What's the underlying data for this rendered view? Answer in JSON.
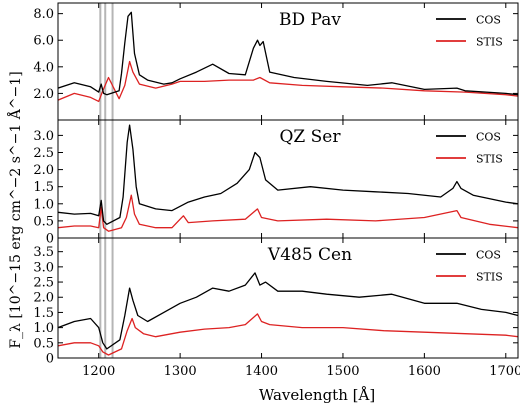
{
  "chart_data": {
    "type": "line",
    "xlabel": "Wavelength [Å]",
    "ylabel": "F_λ [10^−15 erg cm^−2 s^−1 Å^−1]",
    "xlim": [
      1150,
      1715
    ],
    "xticks": [
      1200,
      1300,
      1400,
      1500,
      1600,
      1700
    ],
    "xtick_labels": [
      "1200",
      "1300",
      "1400",
      "1500",
      "1600",
      "1700"
    ],
    "legend_placement": "top-right",
    "colors": {
      "COS": "#000000",
      "STIS": "#dd2222",
      "geocoronal": "#b5b5b5"
    },
    "panels": [
      {
        "title": "BD Pav",
        "ylim": [
          0,
          8.8
        ],
        "yticks": [
          2,
          4,
          6,
          8
        ],
        "ytick_labels": [
          "2.0",
          "4.0",
          "6.0",
          "8.0"
        ],
        "series": [
          {
            "name": "COS",
            "x": [
              1150,
              1170,
              1190,
              1200,
              1203,
              1206,
              1210,
              1225,
              1228,
              1232,
              1236,
              1240,
              1244,
              1250,
              1260,
              1280,
              1290,
              1300,
              1320,
              1340,
              1360,
              1380,
              1390,
              1395,
              1398,
              1402,
              1410,
              1440,
              1480,
              1530,
              1560,
              1600,
              1640,
              1650,
              1700,
              1715
            ],
            "y": [
              2.4,
              2.8,
              2.5,
              2.1,
              2.7,
              2.0,
              1.9,
              2.2,
              3.5,
              5.8,
              7.8,
              8.1,
              5.0,
              3.4,
              3.0,
              2.7,
              2.8,
              3.1,
              3.6,
              4.2,
              3.5,
              3.4,
              5.4,
              6.0,
              5.6,
              5.9,
              3.6,
              3.2,
              2.9,
              2.6,
              2.8,
              2.3,
              2.4,
              2.2,
              2.0,
              1.9
            ]
          },
          {
            "name": "STIS",
            "x": [
              1150,
              1170,
              1190,
              1200,
              1205,
              1212,
              1225,
              1232,
              1238,
              1242,
              1250,
              1270,
              1290,
              1300,
              1330,
              1360,
              1390,
              1398,
              1410,
              1450,
              1500,
              1550,
              1600,
              1650,
              1700,
              1715
            ],
            "y": [
              1.5,
              2.0,
              1.7,
              1.4,
              2.2,
              3.2,
              1.6,
              2.6,
              4.4,
              3.6,
              2.7,
              2.4,
              2.7,
              2.9,
              2.9,
              3.0,
              3.0,
              3.2,
              2.8,
              2.6,
              2.5,
              2.4,
              2.2,
              2.1,
              1.9,
              1.8
            ]
          }
        ]
      },
      {
        "title": "QZ Ser",
        "ylim": [
          0,
          3.45
        ],
        "yticks": [
          0,
          0.5,
          1,
          1.5,
          2,
          2.5,
          3
        ],
        "ytick_labels": [
          "0",
          "0.5",
          "1.0",
          "1.5",
          "2.0",
          "2.5",
          "3.0"
        ],
        "series": [
          {
            "name": "COS",
            "x": [
              1150,
              1170,
              1190,
              1200,
              1203,
              1206,
              1210,
              1226,
              1230,
              1235,
              1238,
              1242,
              1246,
              1250,
              1270,
              1290,
              1310,
              1330,
              1350,
              1370,
              1385,
              1392,
              1398,
              1405,
              1420,
              1460,
              1500,
              1540,
              1580,
              1620,
              1635,
              1640,
              1645,
              1660,
              1700,
              1715
            ],
            "y": [
              0.75,
              0.7,
              0.72,
              0.65,
              1.1,
              0.5,
              0.4,
              0.6,
              1.2,
              2.8,
              3.3,
              2.6,
              1.5,
              1.0,
              0.85,
              0.8,
              1.05,
              1.2,
              1.3,
              1.6,
              2.0,
              2.5,
              2.35,
              1.7,
              1.4,
              1.5,
              1.4,
              1.35,
              1.3,
              1.2,
              1.45,
              1.65,
              1.45,
              1.25,
              1.05,
              1.0
            ]
          },
          {
            "name": "STIS",
            "x": [
              1150,
              1170,
              1190,
              1200,
              1203,
              1206,
              1212,
              1228,
              1234,
              1240,
              1244,
              1250,
              1270,
              1290,
              1300,
              1304,
              1310,
              1340,
              1380,
              1395,
              1400,
              1420,
              1480,
              1540,
              1600,
              1640,
              1645,
              1680,
              1715
            ],
            "y": [
              0.3,
              0.35,
              0.35,
              0.3,
              0.9,
              0.3,
              0.2,
              0.3,
              0.6,
              1.25,
              0.7,
              0.4,
              0.3,
              0.3,
              0.55,
              0.65,
              0.45,
              0.5,
              0.55,
              0.85,
              0.6,
              0.5,
              0.55,
              0.5,
              0.6,
              0.8,
              0.6,
              0.4,
              0.3
            ]
          }
        ]
      },
      {
        "title": "V485 Cen",
        "ylim": [
          0,
          3.95
        ],
        "yticks": [
          0,
          0.5,
          1,
          1.5,
          2,
          2.5,
          3,
          3.5
        ],
        "ytick_labels": [
          "0",
          "0.5",
          "1.0",
          "1.5",
          "2.0",
          "2.5",
          "3.0",
          "3.5"
        ],
        "series": [
          {
            "name": "COS",
            "x": [
              1150,
              1170,
              1190,
              1200,
              1205,
              1210,
              1226,
              1232,
              1238,
              1242,
              1248,
              1260,
              1280,
              1300,
              1320,
              1340,
              1360,
              1380,
              1392,
              1398,
              1405,
              1420,
              1450,
              1480,
              1520,
              1560,
              1600,
              1640,
              1670,
              1700,
              1715
            ],
            "y": [
              1.0,
              1.2,
              1.3,
              1.0,
              0.5,
              0.3,
              0.6,
              1.4,
              2.3,
              1.9,
              1.4,
              1.2,
              1.5,
              1.8,
              2.0,
              2.3,
              2.2,
              2.4,
              2.8,
              2.4,
              2.5,
              2.2,
              2.2,
              2.1,
              2.0,
              2.1,
              1.8,
              1.8,
              1.6,
              1.5,
              1.4
            ]
          },
          {
            "name": "STIS",
            "x": [
              1150,
              1170,
              1190,
              1200,
              1205,
              1212,
              1228,
              1235,
              1241,
              1245,
              1255,
              1270,
              1300,
              1330,
              1360,
              1380,
              1395,
              1400,
              1410,
              1450,
              1500,
              1550,
              1600,
              1650,
              1700,
              1715
            ],
            "y": [
              0.4,
              0.5,
              0.5,
              0.4,
              0.2,
              0.1,
              0.3,
              0.9,
              1.3,
              1.0,
              0.8,
              0.7,
              0.85,
              0.95,
              1.0,
              1.1,
              1.45,
              1.2,
              1.1,
              1.0,
              1.0,
              0.9,
              0.85,
              0.8,
              0.75,
              0.7
            ]
          }
        ]
      }
    ]
  }
}
